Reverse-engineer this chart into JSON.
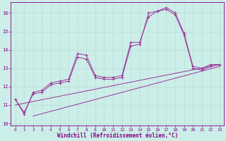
{
  "xlabel": "Windchill (Refroidissement éolien,°C)",
  "background_color": "#cceee8",
  "grid_color": "#b8ddd8",
  "line_color": "#993399",
  "xlim": [
    -0.5,
    23.5
  ],
  "ylim": [
    9.9,
    16.6
  ],
  "yticks": [
    10,
    11,
    12,
    13,
    14,
    15,
    16
  ],
  "xticks": [
    0,
    1,
    2,
    3,
    4,
    5,
    6,
    7,
    8,
    9,
    10,
    11,
    12,
    13,
    14,
    15,
    16,
    17,
    18,
    19,
    20,
    21,
    22,
    23
  ],
  "series1_x": [
    0,
    1,
    2,
    3,
    4,
    5,
    6,
    7,
    8,
    9,
    10,
    11,
    12,
    13,
    14,
    15,
    16,
    17,
    18,
    19,
    20,
    21,
    22,
    23
  ],
  "series1_y": [
    11.3,
    10.5,
    11.7,
    11.8,
    12.2,
    12.3,
    12.4,
    13.8,
    13.7,
    12.6,
    12.5,
    12.5,
    12.6,
    14.4,
    14.4,
    15.8,
    16.1,
    16.3,
    16.0,
    14.9,
    13.1,
    13.0,
    13.2,
    13.2
  ],
  "series2_x": [
    0,
    1,
    2,
    3,
    4,
    5,
    6,
    7,
    8,
    9,
    10,
    11,
    12,
    13,
    14,
    15,
    16,
    17,
    18,
    19,
    20,
    21,
    22,
    23
  ],
  "series2_y": [
    11.3,
    10.6,
    11.6,
    11.7,
    12.1,
    12.2,
    12.3,
    13.6,
    13.5,
    12.5,
    12.4,
    12.4,
    12.5,
    14.2,
    14.3,
    16.0,
    16.1,
    16.2,
    15.9,
    14.8,
    13.0,
    12.9,
    13.1,
    13.2
  ],
  "series3_x": [
    0,
    23
  ],
  "series3_y": [
    11.0,
    13.2
  ],
  "series4_x": [
    2,
    23
  ],
  "series4_y": [
    10.4,
    13.1
  ]
}
